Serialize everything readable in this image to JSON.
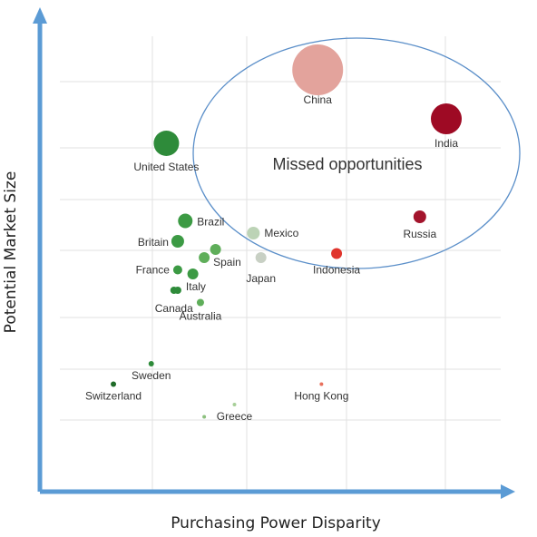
{
  "chart_data": {
    "type": "scatter",
    "title": "",
    "xlabel": "Purchasing Power Disparity",
    "ylabel": "Potential Market Size",
    "xlim": [
      0,
      10
    ],
    "ylim": [
      0,
      10
    ],
    "grid": true,
    "annotation": "Missed opportunities",
    "points": [
      {
        "label": "China",
        "x": 6.6,
        "y": 9.0,
        "size": 28,
        "color": "#e3a39c"
      },
      {
        "label": "India",
        "x": 10.0,
        "y": 7.8,
        "size": 17,
        "color": "#9e0a24"
      },
      {
        "label": "United States",
        "x": 2.6,
        "y": 7.2,
        "size": 14,
        "color": "#2e8b3a"
      },
      {
        "label": "Brazil",
        "x": 3.1,
        "y": 5.3,
        "size": 8,
        "color": "#3c9a44"
      },
      {
        "label": "Britain",
        "x": 2.9,
        "y": 4.8,
        "size": 7,
        "color": "#3c9a44"
      },
      {
        "label": "Mexico",
        "x": 4.9,
        "y": 5.0,
        "size": 7,
        "color": "#bcd3b6"
      },
      {
        "label": "Russia",
        "x": 9.3,
        "y": 5.4,
        "size": 7,
        "color": "#a3142c"
      },
      {
        "label": "Indonesia",
        "x": 7.1,
        "y": 4.5,
        "size": 6,
        "color": "#e0342c"
      },
      {
        "label": "Spain",
        "x": 3.6,
        "y": 4.4,
        "size": 6,
        "color": "#5fae5a"
      },
      {
        "label": "Japan",
        "x": 5.1,
        "y": 4.4,
        "size": 6,
        "color": "#c8d0c4"
      },
      {
        "label": "France",
        "x": 2.9,
        "y": 4.1,
        "size": 5,
        "color": "#3c9a44"
      },
      {
        "label": "Italy",
        "x": 2.9,
        "y": 3.6,
        "size": 4,
        "color": "#2e8b3a"
      },
      {
        "label": "Canada",
        "x": 2.8,
        "y": 3.6,
        "size": 4,
        "color": "#2e8b3a"
      },
      {
        "label": "Australia",
        "x": 3.5,
        "y": 3.3,
        "size": 4,
        "color": "#5fae5a"
      },
      {
        "label": "Sweden",
        "x": 2.2,
        "y": 1.8,
        "size": 3,
        "color": "#2e8b3a"
      },
      {
        "label": "Switzerland",
        "x": 1.2,
        "y": 1.3,
        "size": 3,
        "color": "#1f6b28"
      },
      {
        "label": "Hong Kong",
        "x": 6.7,
        "y": 1.3,
        "size": 2,
        "color": "#e8705c"
      },
      {
        "label": "Greece",
        "x": 4.4,
        "y": 0.8,
        "size": 2,
        "color": "#a7cf98"
      }
    ],
    "extra_points": [
      {
        "x": 3.3,
        "y": 4.0,
        "size": 6,
        "color": "#3c9a44"
      },
      {
        "x": 3.9,
        "y": 4.6,
        "size": 6,
        "color": "#5fae5a"
      },
      {
        "x": 3.6,
        "y": 0.5,
        "size": 2,
        "color": "#8cc07e"
      }
    ]
  },
  "colors": {
    "axis": "#5b9bd5",
    "grid": "#e2e2e2",
    "ellipse": "#5b8fc9"
  }
}
